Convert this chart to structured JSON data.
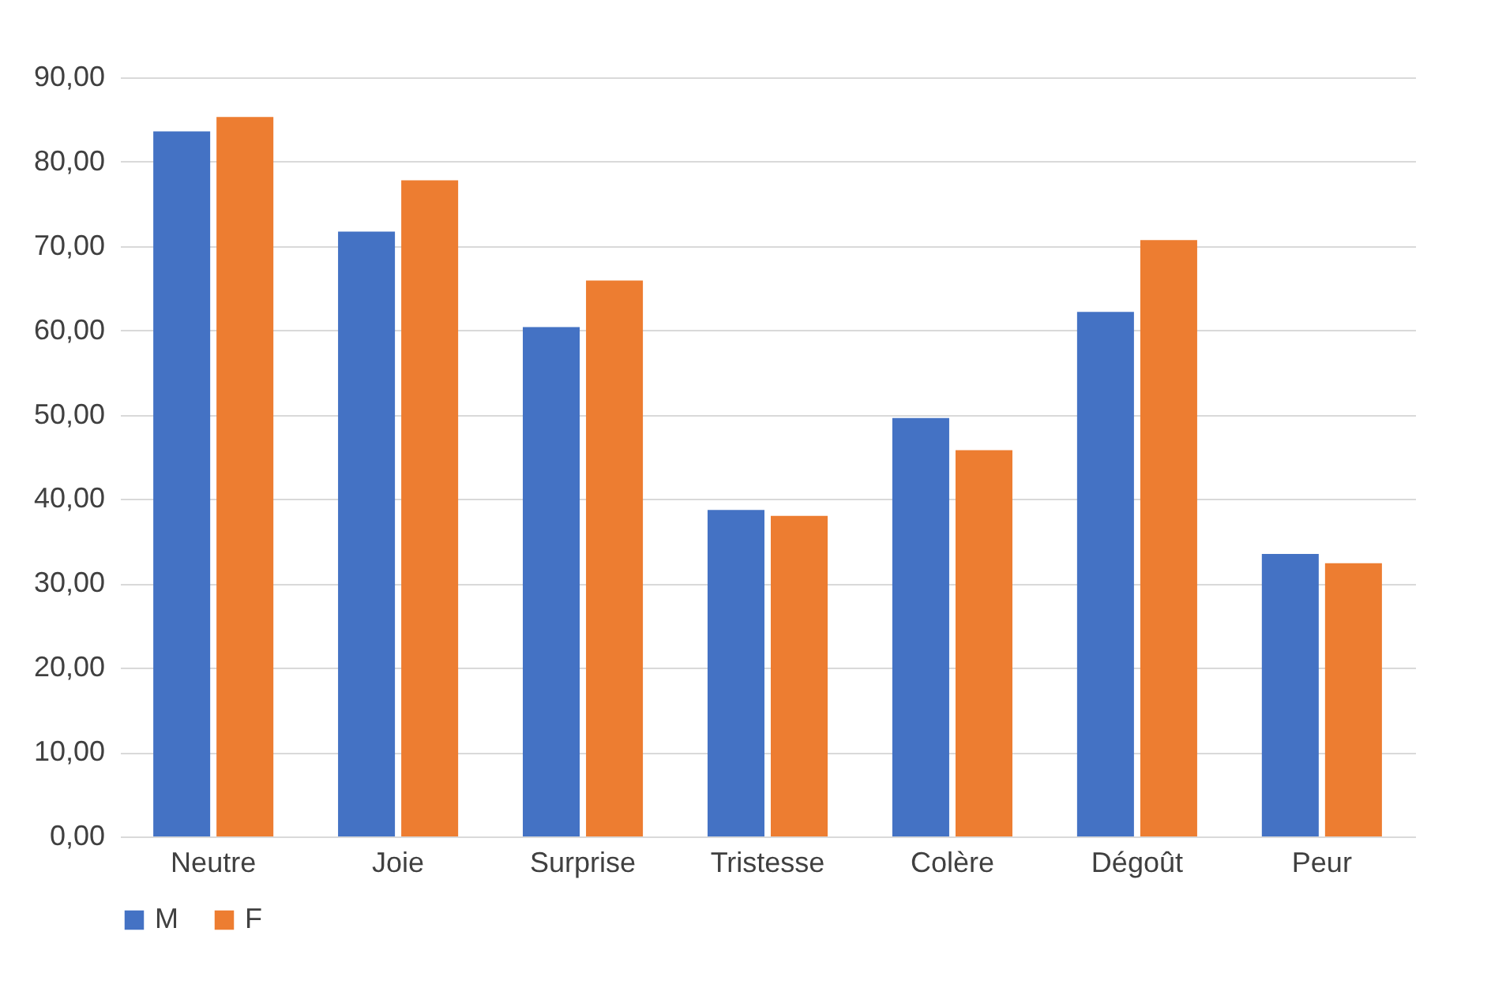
{
  "chart_data": {
    "type": "bar",
    "categories": [
      "Neutre",
      "Joie",
      "Surprise",
      "Tristesse",
      "Colère",
      "Dégoût",
      "Peur"
    ],
    "series": [
      {
        "name": "M",
        "color": "#4472c4",
        "values": [
          83.6,
          71.7,
          60.4,
          38.7,
          49.6,
          62.2,
          33.5
        ]
      },
      {
        "name": "F",
        "color": "#ed7d31",
        "values": [
          85.3,
          77.8,
          65.9,
          38.0,
          45.8,
          70.7,
          32.4
        ]
      }
    ],
    "ylim": [
      0,
      90
    ],
    "yticks": [
      {
        "value": 0,
        "label": "0,00"
      },
      {
        "value": 10,
        "label": "10,00"
      },
      {
        "value": 20,
        "label": "20,00"
      },
      {
        "value": 30,
        "label": "30,00"
      },
      {
        "value": 40,
        "label": "40,00"
      },
      {
        "value": 50,
        "label": "50,00"
      },
      {
        "value": 60,
        "label": "60,00"
      },
      {
        "value": 70,
        "label": "70,00"
      },
      {
        "value": 80,
        "label": "80,00"
      },
      {
        "value": 90,
        "label": "90,00"
      }
    ],
    "grid": "y",
    "legend": "bottom"
  }
}
